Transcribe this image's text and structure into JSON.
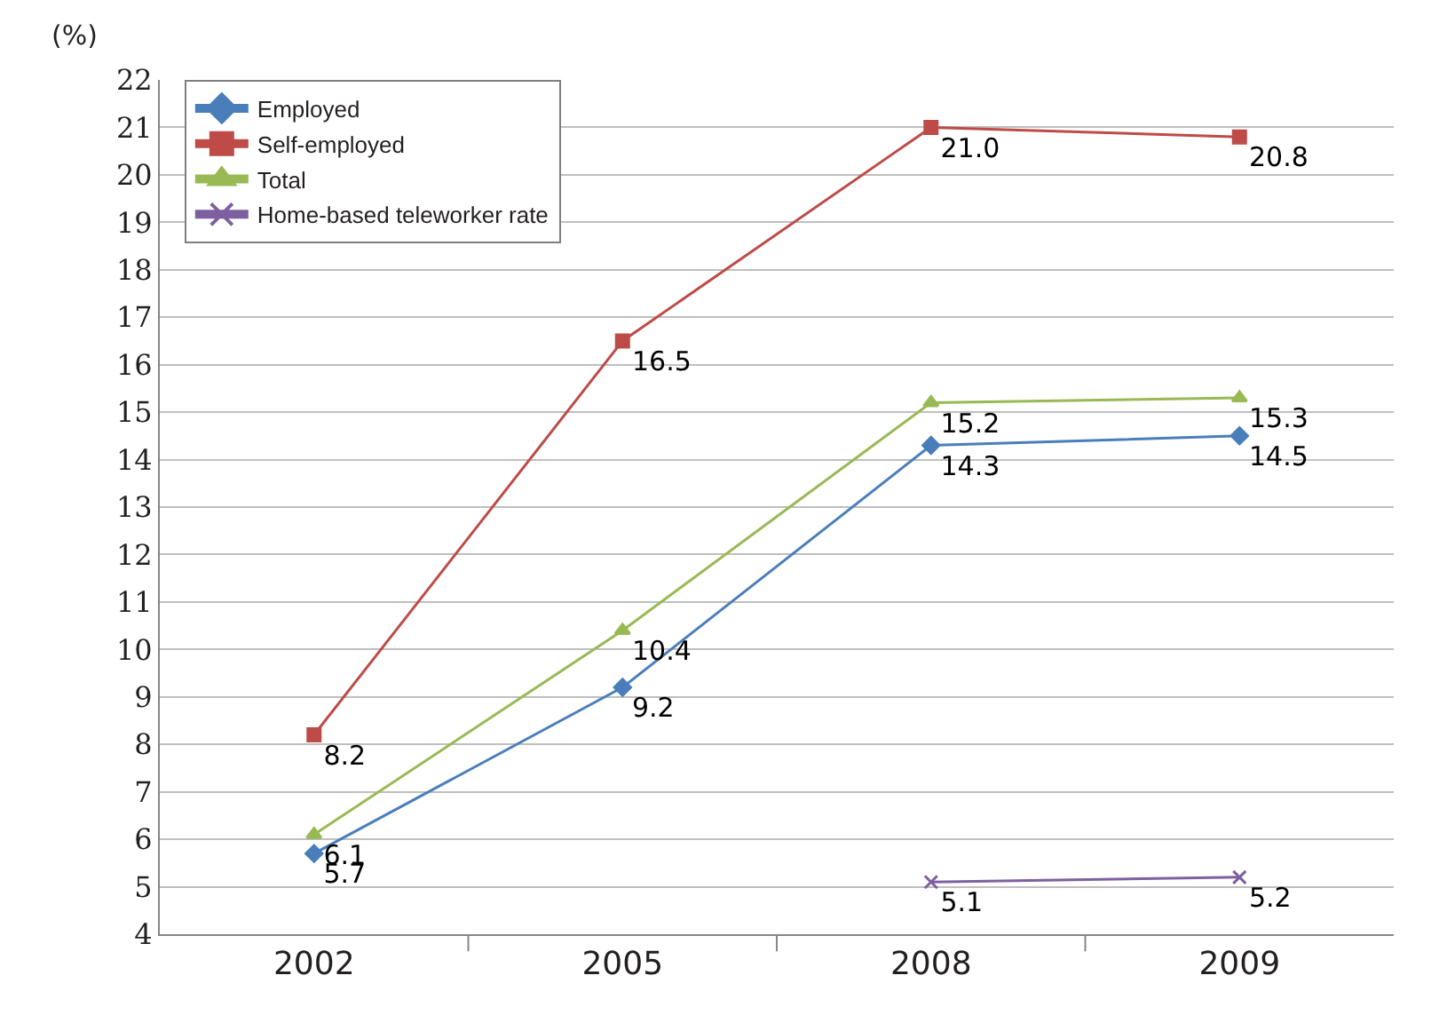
{
  "chart_data": {
    "type": "line",
    "ylabel": "(%)",
    "categories": [
      "2002",
      "2005",
      "2008",
      "2009"
    ],
    "series": [
      {
        "name": "Employed",
        "color": "#4a7ebb",
        "marker": "diamond",
        "values": [
          5.7,
          9.2,
          14.3,
          14.5
        ],
        "value_labels": [
          "5.7",
          "9.2",
          "14.3",
          "14.5"
        ]
      },
      {
        "name": "Self-employed",
        "color": "#be4b48",
        "marker": "square",
        "values": [
          8.2,
          16.5,
          21.0,
          20.8
        ],
        "value_labels": [
          "8.2",
          "16.5",
          "21.0",
          "20.8"
        ]
      },
      {
        "name": "Total",
        "color": "#98b954",
        "marker": "triangle",
        "values": [
          6.1,
          10.4,
          15.2,
          15.3
        ],
        "value_labels": [
          "6.1",
          "10.4",
          "15.2",
          "15.3"
        ]
      },
      {
        "name": "Home-based teleworker rate",
        "color": "#7d60a0",
        "marker": "cross",
        "values": [
          null,
          null,
          5.1,
          5.2
        ],
        "value_labels": [
          null,
          null,
          "5.1",
          "5.2"
        ]
      }
    ],
    "ylim": [
      4,
      22
    ],
    "yticks": [
      4,
      5,
      6,
      7,
      8,
      9,
      10,
      11,
      12,
      13,
      14,
      15,
      16,
      17,
      18,
      19,
      20,
      21,
      22
    ],
    "grid": "y",
    "legend": "top left",
    "line_style": "solid"
  }
}
